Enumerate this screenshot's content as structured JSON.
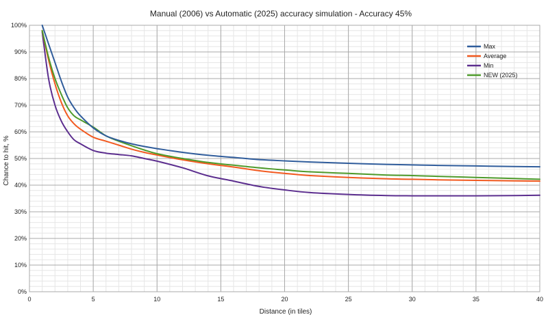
{
  "chart_data": {
    "type": "line",
    "title": "Manual (2006) vs Automatic (2025) accuracy simulation - Accuracy 45%",
    "xlabel": "Distance (in tiles)",
    "ylabel": "Chance to hit, %",
    "xlim": [
      0,
      40
    ],
    "ylim": [
      0,
      100
    ],
    "x_ticks": [
      0,
      5,
      10,
      15,
      20,
      25,
      30,
      35,
      40
    ],
    "y_ticks": [
      0,
      10,
      20,
      30,
      40,
      50,
      60,
      70,
      80,
      90,
      100
    ],
    "y_tick_suffix": "%",
    "grid": true,
    "legend_position": "top-right",
    "x": [
      1,
      1.5,
      2,
      2.5,
      3,
      3.5,
      4,
      5,
      6,
      7,
      8,
      9,
      10,
      12,
      14,
      16,
      18,
      20,
      22,
      25,
      28,
      30,
      32,
      35,
      38,
      40
    ],
    "series": [
      {
        "name": "Max",
        "color": "#2f5c9b",
        "values": [
          100,
          93,
          86,
          79,
          73,
          69,
          66,
          61.5,
          58.5,
          56.8,
          55.5,
          54.5,
          53.7,
          52.3,
          51.2,
          50.4,
          49.6,
          49.1,
          48.7,
          48.2,
          47.8,
          47.6,
          47.4,
          47.2,
          47.0,
          46.9
        ]
      },
      {
        "name": "Average",
        "color": "#f2591f",
        "values": [
          98,
          87,
          78,
          71,
          66,
          63,
          61,
          58,
          56.5,
          55,
          53.5,
          52.3,
          51.3,
          49.5,
          48,
          46.8,
          45.4,
          44.4,
          43.6,
          42.9,
          42.4,
          42.2,
          42.0,
          41.8,
          41.6,
          41.5
        ]
      },
      {
        "name": "Min",
        "color": "#5b2d8e",
        "values": [
          97.5,
          80,
          70,
          64,
          60,
          57,
          55.5,
          53,
          52,
          51.5,
          51,
          50,
          49,
          46.5,
          43.5,
          41.5,
          39.5,
          38.2,
          37.2,
          36.5,
          36.1,
          36.0,
          36.0,
          36.0,
          36.1,
          36.2
        ]
      },
      {
        "name": "NEW (2025)",
        "color": "#4e9a2a",
        "values": [
          98,
          88,
          80,
          74,
          69,
          66,
          64.5,
          61.8,
          58.5,
          56.5,
          54.8,
          53.2,
          51.8,
          50,
          48.5,
          47.5,
          46.5,
          45.7,
          45.0,
          44.4,
          43.8,
          43.6,
          43.3,
          42.9,
          42.5,
          42.2
        ]
      }
    ]
  }
}
